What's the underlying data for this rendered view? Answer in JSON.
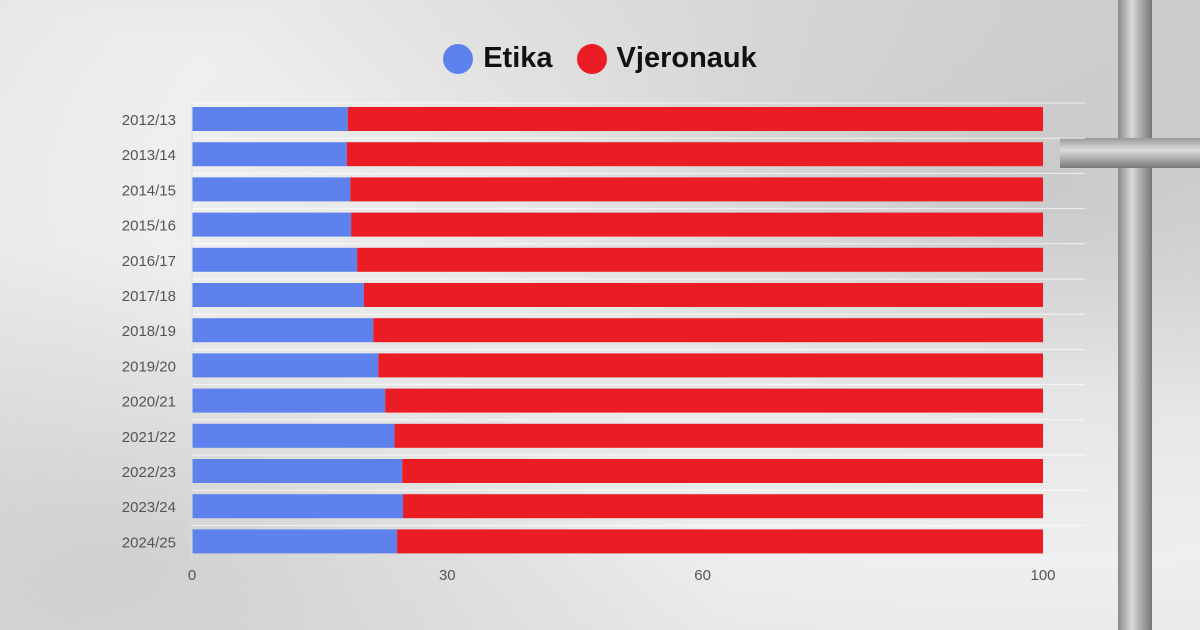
{
  "chart_data": {
    "type": "bar",
    "orientation": "horizontal",
    "stacked": true,
    "categories": [
      "2012/13",
      "2013/14",
      "2014/15",
      "2015/16",
      "2016/17",
      "2017/18",
      "2018/19",
      "2019/20",
      "2020/21",
      "2021/22",
      "2022/23",
      "2023/24",
      "2024/25"
    ],
    "series": [
      {
        "name": "Etika",
        "color": "#5e82ed",
        "values": [
          18.3,
          18.2,
          18.6,
          18.7,
          19.4,
          20.2,
          21.3,
          21.9,
          22.7,
          23.8,
          24.7,
          24.8,
          24.1
        ]
      },
      {
        "name": "Vjeronauk",
        "color": "#ec1c24",
        "values": [
          81.7,
          81.8,
          81.4,
          81.3,
          80.6,
          79.8,
          78.7,
          78.1,
          77.3,
          76.2,
          75.3,
          75.2,
          75.9
        ]
      }
    ],
    "xlim": [
      0,
      100
    ],
    "xticks": [
      "0",
      "30",
      "60",
      "100"
    ],
    "xtick_values": [
      0,
      30,
      60,
      100
    ],
    "legend_position": "top-center",
    "grid": false
  }
}
